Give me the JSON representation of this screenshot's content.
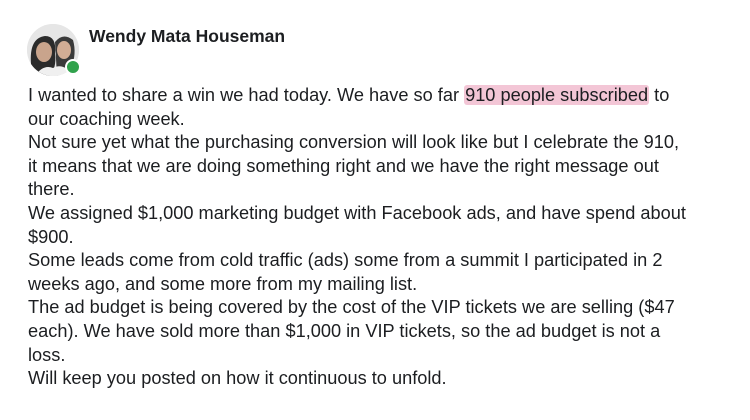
{
  "author": {
    "name": "Wendy Mata Houseman",
    "online": true,
    "online_color": "#31a24c"
  },
  "highlight_color": "#f3c6d6",
  "post": {
    "line1_before": "I wanted to share a win we had today. We have so far ",
    "line1_highlight": "910 people subscribed",
    "line1_after": " to",
    "lines": [
      "our coaching week.",
      "Not sure yet what the purchasing conversion will look like but I celebrate the 910,",
      "it means that we are doing something right and we have the right message out",
      "there.",
      "We assigned $1,000 marketing budget with Facebook ads, and have spend about",
      "$900.",
      "Some leads come from cold traffic (ads) some from a summit I participated in 2",
      "weeks ago, and some more from my mailing list.",
      "The ad budget is being covered by the cost of the VIP tickets we are selling ($47",
      "each). We have sold more than $1,000 in VIP tickets, so the ad budget is not a",
      "loss.",
      "Will keep you posted on how it continuous to unfold."
    ]
  }
}
